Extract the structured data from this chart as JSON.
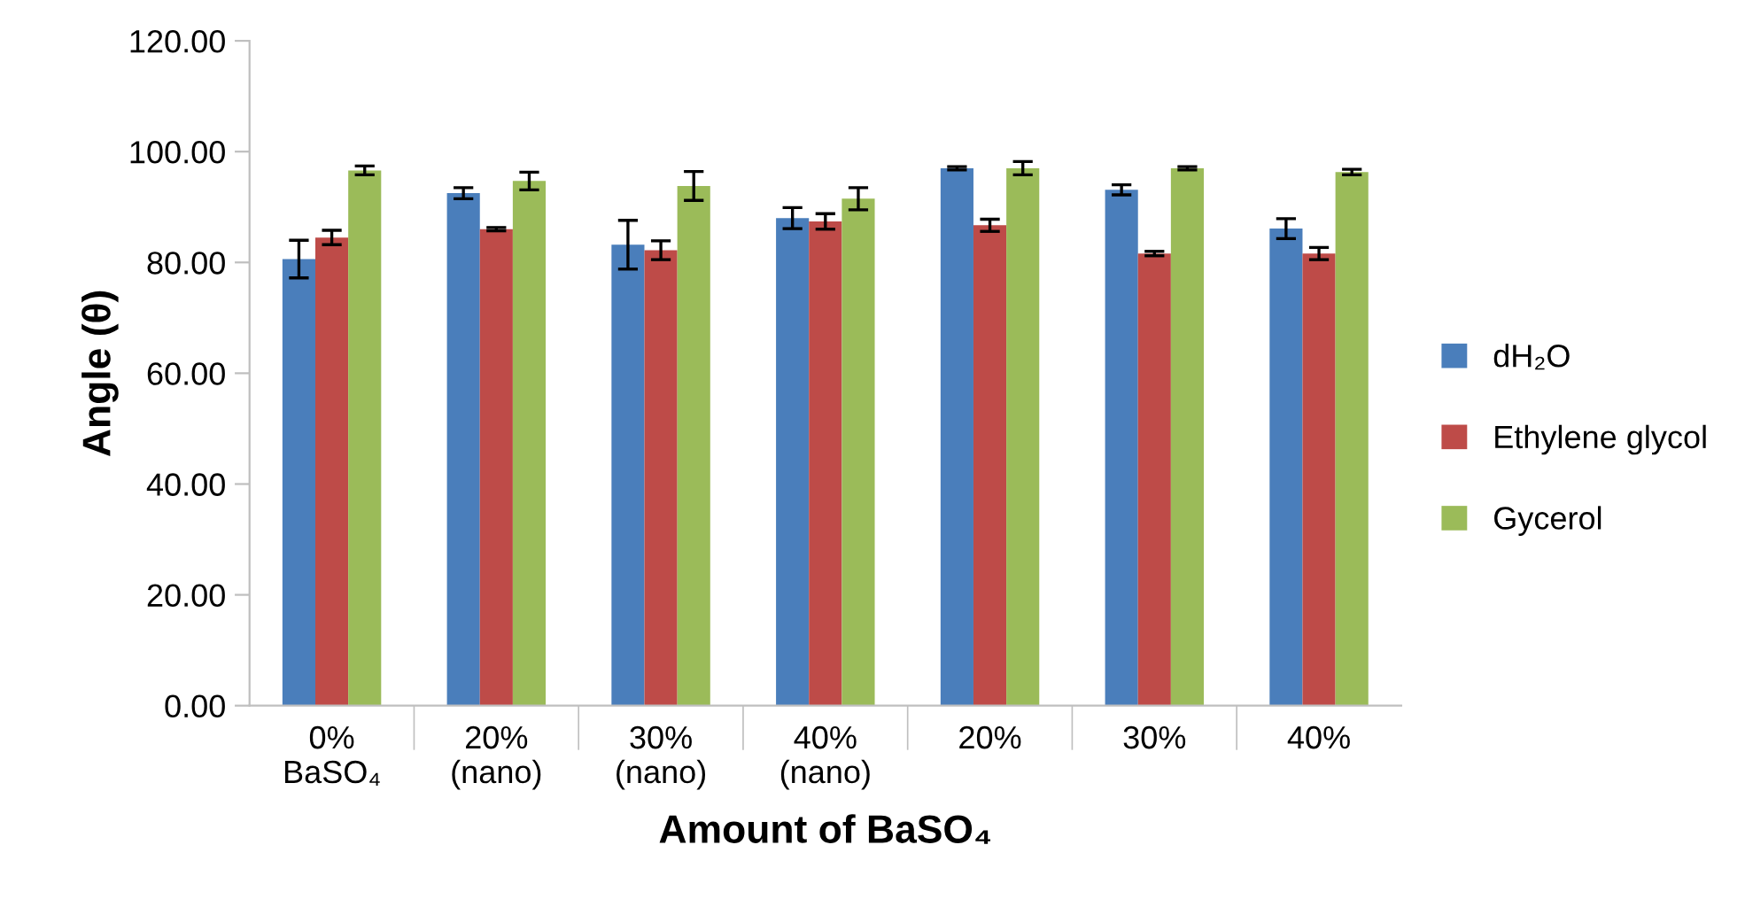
{
  "chart_data": {
    "type": "bar",
    "ylabel": "Angle (θ)",
    "xlabel": "Amount of BaSO₄",
    "categories": [
      "0%\nBaSO₄",
      "20%\n(nano)",
      "30%\n(nano)",
      "40%\n(nano)",
      "20%",
      "30%",
      "40%"
    ],
    "series": [
      {
        "name": "dH₂O",
        "color": "#4a7ebb",
        "values": [
          80.6,
          92.5,
          83.2,
          88.0,
          97.0,
          93.1,
          86.1
        ],
        "errors": [
          3.4,
          1.0,
          4.4,
          1.9,
          0.3,
          0.9,
          1.8
        ]
      },
      {
        "name": "Ethylene glycol",
        "color": "#be4b48",
        "values": [
          84.5,
          86.0,
          82.2,
          87.4,
          86.7,
          81.6,
          81.6
        ],
        "errors": [
          1.3,
          0.3,
          1.7,
          1.4,
          1.1,
          0.4,
          1.1
        ]
      },
      {
        "name": "Gycerol",
        "color": "#9bbb59",
        "values": [
          96.6,
          94.7,
          93.8,
          91.5,
          97.0,
          97.0,
          96.3
        ],
        "errors": [
          0.8,
          1.6,
          2.6,
          2.0,
          1.2,
          0.3,
          0.5
        ]
      }
    ],
    "ylim": [
      0,
      120
    ],
    "yticks": [
      {
        "value": 0,
        "label": "0.00"
      },
      {
        "value": 20,
        "label": "20.00"
      },
      {
        "value": 40,
        "label": "40.00"
      },
      {
        "value": 60,
        "label": "60.00"
      },
      {
        "value": 80,
        "label": "80.00"
      },
      {
        "value": 100,
        "label": "100.00"
      },
      {
        "value": 120,
        "label": "120.00"
      }
    ],
    "grid": false,
    "legend": "right"
  }
}
